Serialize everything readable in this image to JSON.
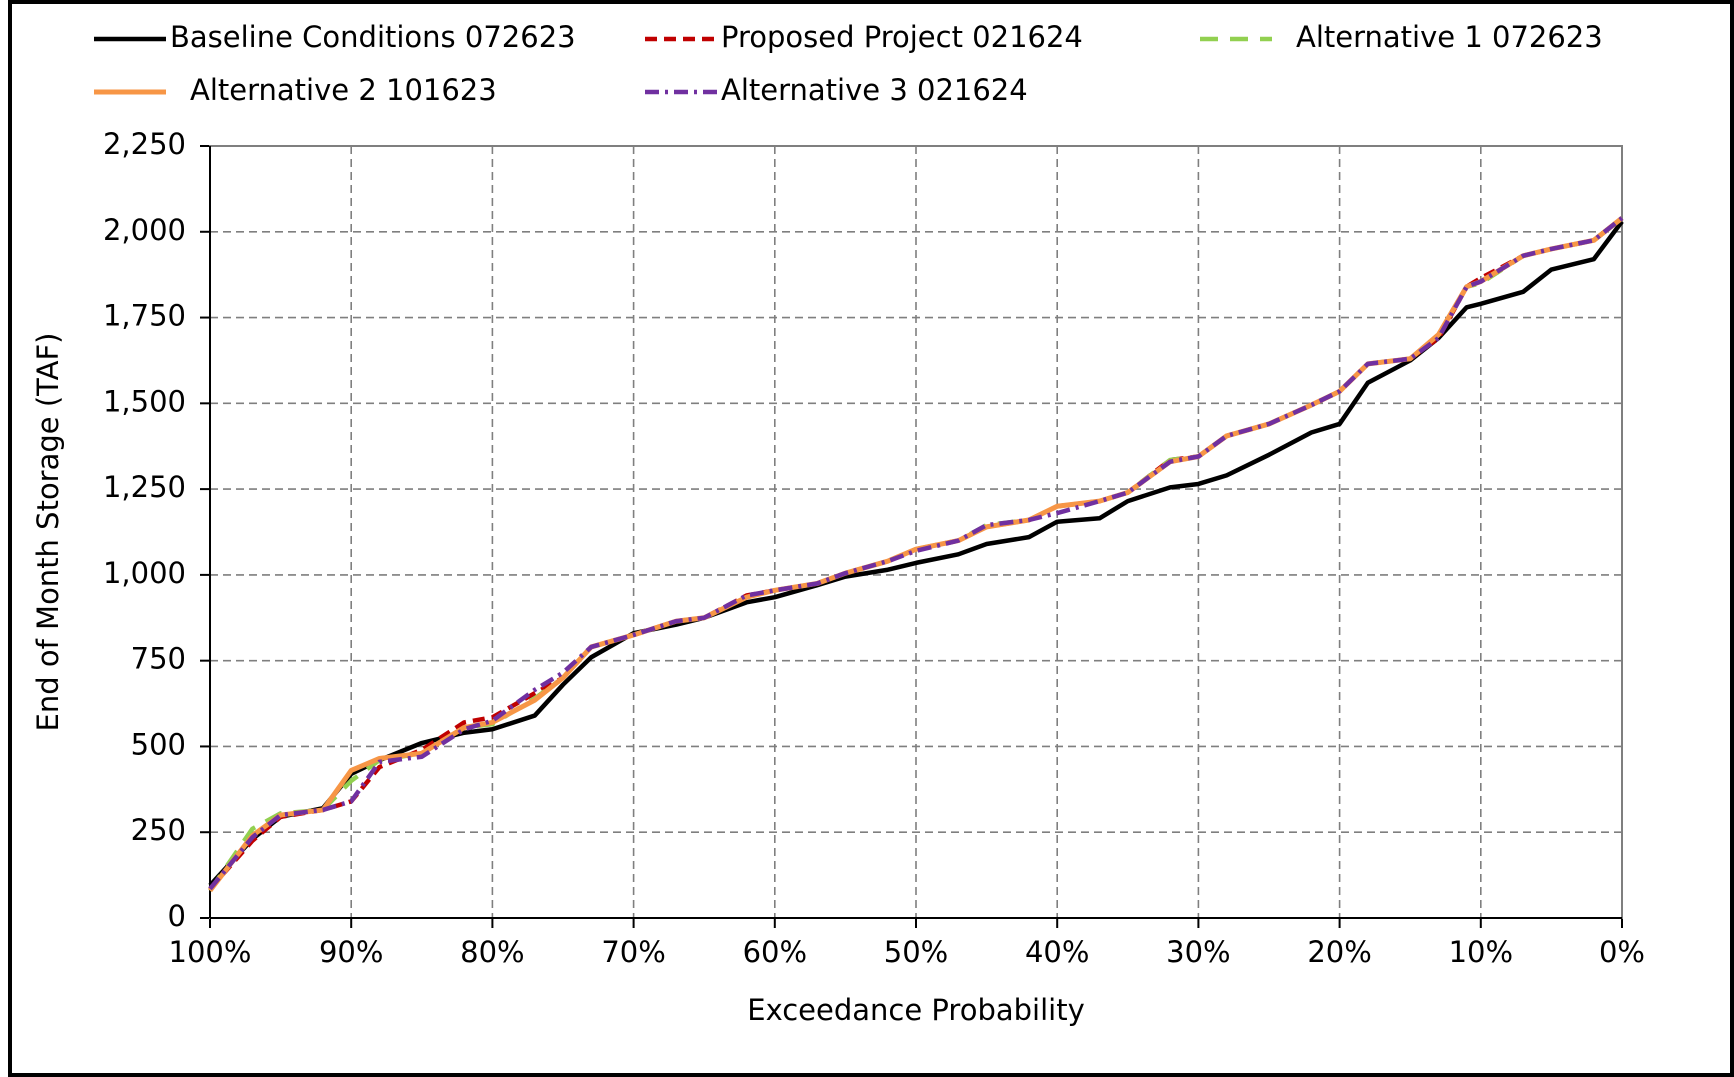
{
  "chart_data": {
    "type": "line",
    "x_label": "Exceedance Probability",
    "y_label": "End of Month Storage (TAF)",
    "x": [
      100,
      97,
      95,
      92,
      90,
      88,
      85,
      82,
      80,
      77,
      75,
      73,
      70,
      67,
      65,
      62,
      60,
      57,
      55,
      52,
      50,
      47,
      45,
      42,
      40,
      37,
      35,
      32,
      30,
      28,
      25,
      22,
      20,
      18,
      15,
      13,
      11,
      10,
      7,
      5,
      2,
      0
    ],
    "series": [
      {
        "name": "Baseline Conditions 072623",
        "color": "#000000",
        "dash": "none",
        "width": 4.5,
        "values": [
          95,
          230,
          295,
          320,
          420,
          460,
          510,
          540,
          550,
          590,
          680,
          760,
          830,
          855,
          875,
          920,
          935,
          970,
          995,
          1015,
          1035,
          1060,
          1090,
          1110,
          1155,
          1165,
          1215,
          1255,
          1265,
          1290,
          1350,
          1415,
          1440,
          1560,
          1625,
          1690,
          1780,
          1790,
          1825,
          1890,
          1920,
          2030
        ]
      },
      {
        "name": "Proposed Project 021624",
        "color": "#c00000",
        "dash": "12 7",
        "width": 4.5,
        "values": [
          85,
          225,
          295,
          315,
          340,
          440,
          490,
          570,
          585,
          655,
          700,
          790,
          825,
          865,
          875,
          940,
          955,
          975,
          1005,
          1040,
          1075,
          1100,
          1140,
          1160,
          1200,
          1215,
          1240,
          1335,
          1345,
          1405,
          1440,
          1495,
          1535,
          1615,
          1630,
          1690,
          1840,
          1865,
          1930,
          1950,
          1975,
          2040
        ]
      },
      {
        "name": "Alternative 1 072623",
        "color": "#92d050",
        "dash": "18 12",
        "width": 4.5,
        "values": [
          80,
          260,
          305,
          315,
          400,
          460,
          480,
          555,
          565,
          640,
          700,
          790,
          825,
          865,
          875,
          935,
          955,
          975,
          1005,
          1040,
          1075,
          1100,
          1145,
          1160,
          1200,
          1215,
          1240,
          1335,
          1345,
          1405,
          1440,
          1495,
          1535,
          1615,
          1630,
          1700,
          1840,
          1850,
          1930,
          1950,
          1975,
          2040
        ]
      },
      {
        "name": "Alternative 2 101623",
        "color": "#f79646",
        "dash": "none",
        "width": 5,
        "values": [
          80,
          240,
          300,
          315,
          430,
          465,
          480,
          555,
          570,
          635,
          700,
          790,
          825,
          865,
          875,
          935,
          955,
          975,
          1005,
          1040,
          1075,
          1100,
          1140,
          1160,
          1200,
          1215,
          1240,
          1330,
          1345,
          1405,
          1440,
          1495,
          1535,
          1615,
          1630,
          1700,
          1840,
          1855,
          1930,
          1950,
          1975,
          2040
        ]
      },
      {
        "name": "Alternative 3 021624",
        "color": "#7030a0",
        "dash": "14 6 3 6",
        "width": 4.5,
        "values": [
          85,
          235,
          300,
          315,
          340,
          455,
          470,
          550,
          575,
          665,
          715,
          790,
          825,
          865,
          875,
          940,
          955,
          975,
          1005,
          1040,
          1070,
          1100,
          1145,
          1160,
          1180,
          1215,
          1240,
          1330,
          1345,
          1405,
          1440,
          1495,
          1535,
          1615,
          1630,
          1690,
          1840,
          1855,
          1930,
          1950,
          1975,
          2040
        ]
      }
    ],
    "xlim": [
      100,
      0
    ],
    "xticks": [
      {
        "value": 100,
        "label": "100%"
      },
      {
        "value": 90,
        "label": "90%"
      },
      {
        "value": 80,
        "label": "80%"
      },
      {
        "value": 70,
        "label": "70%"
      },
      {
        "value": 60,
        "label": "60%"
      },
      {
        "value": 50,
        "label": "50%"
      },
      {
        "value": 40,
        "label": "40%"
      },
      {
        "value": 30,
        "label": "30%"
      },
      {
        "value": 20,
        "label": "20%"
      },
      {
        "value": 10,
        "label": "10%"
      },
      {
        "value": 0,
        "label": "0%"
      }
    ],
    "ylim": [
      0,
      2250
    ],
    "yticks": [
      0,
      250,
      500,
      750,
      {
        "value": 1000,
        "label": "1,000"
      },
      {
        "value": 1250,
        "label": "1,250"
      },
      {
        "value": 1500,
        "label": "1,500"
      },
      {
        "value": 1750,
        "label": "1,750"
      },
      {
        "value": 2000,
        "label": "2,000"
      },
      {
        "value": 2250,
        "label": "2,250"
      }
    ],
    "grid": true,
    "legend": "top"
  }
}
